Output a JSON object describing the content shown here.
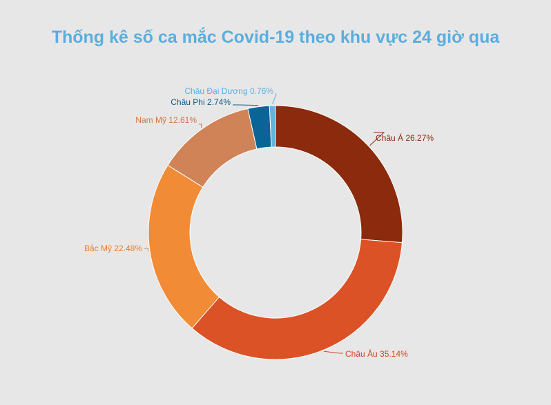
{
  "chart_data": {
    "type": "pie",
    "variant": "donut",
    "title": "Thống kê số ca mắc Covid-19 theo khu vực 24 giờ qua",
    "slices": [
      {
        "name": "Châu Á",
        "value": 26.27,
        "label": "Châu Á 26.27%",
        "color": "#8b2a0c",
        "label_color": "#8b2a0c"
      },
      {
        "name": "Châu Âu",
        "value": 35.14,
        "label": "Châu Âu 35.14%",
        "color": "#db5226",
        "label_color": "#c9481f"
      },
      {
        "name": "Bắc Mỹ",
        "value": 22.48,
        "label": "Bắc Mỹ 22.48%",
        "color": "#f28b36",
        "label_color": "#e5812f"
      },
      {
        "name": "Nam Mỹ",
        "value": 12.61,
        "label": "Nam Mỹ 12.61%",
        "color": "#d08356",
        "label_color": "#c97a4b"
      },
      {
        "name": "Châu Phi",
        "value": 2.74,
        "label": "Châu Phi  2.74%",
        "color": "#0a6596",
        "label_color": "#0a5a86"
      },
      {
        "name": "Châu Đại Dương",
        "value": 0.76,
        "label": "Châu Đại Dương 0.76%",
        "color": "#62b3e3",
        "label_color": "#5aaee0"
      }
    ],
    "legend": "none"
  }
}
